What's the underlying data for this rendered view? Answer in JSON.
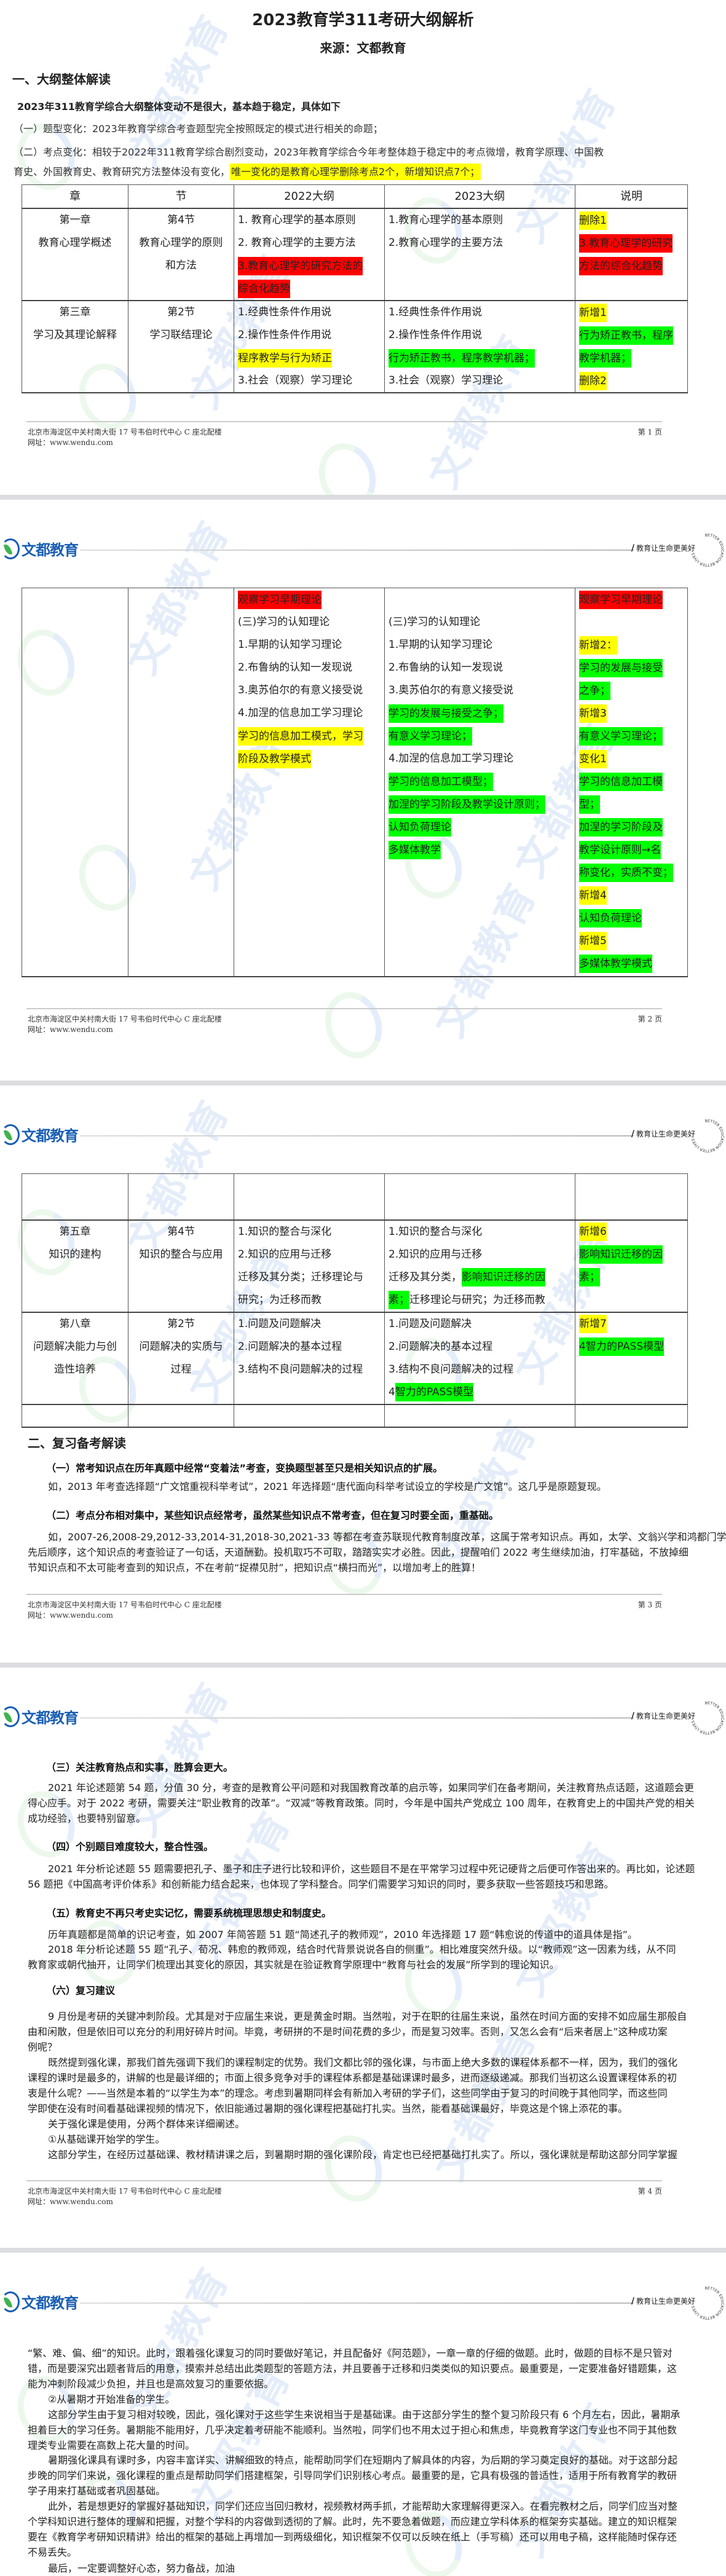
{
  "colors": {
    "red": "#ff0000",
    "yellow": "#ffff00",
    "green": "#00ff00",
    "brand_blue": "#1a5fb4",
    "brand_green": "#3fb34f"
  },
  "header": {
    "logo_text": "文都教育",
    "slogan": "教育让生命更美好",
    "seal_text": "BETTER EDUCATION BETTER LIVES",
    "watermark": "文都教育"
  },
  "footer": {
    "address": "北京市海淀区中关村南大街 17 号韦伯时代中心 C 座北配楼",
    "website": "网址：www.wendu.com",
    "pages": [
      "第 1 页",
      "第 2 页",
      "第 3 页",
      "第 4 页"
    ]
  },
  "doc": {
    "title": "2023教育学311考研大纲解析",
    "source": "来源：文都教育",
    "section1_heading": "一、大纲整体解读",
    "summary": "2023年311教育学综合大纲整体变动不是很大，基本趋于稳定，具体如下",
    "item1": "（一）题型变化：2023年教育学综合考查题型完全按照既定的模式进行相关的命题；",
    "item2_line1": "（二）考点变化：相较于2022年311教育学综合剧烈变动，2023年教育学综合今年考整体趋于稳定中的考点微增，教育学原理、中国教",
    "item2_line2": "育史、外国教育史、教育研究方法整体没有变化，",
    "item2_highlight": "唯一变化的是教育心理学删除考点2个，新增知识点7个；"
  },
  "table1": {
    "header": [
      "章",
      "节",
      "2022大纲",
      "2023大纲",
      "说明"
    ],
    "rows": [
      [
        [
          "第一章",
          "教育心理学概述"
        ],
        [
          "第4节",
          "教育心理学的原则",
          "和方法"
        ],
        [
          "1. 教育心理学的基本原则",
          "2. 教育心理学的主要方法",
          {
            "t": "3.教育心理学的研究方法的",
            "hl": "red"
          },
          {
            "t": "综合化趋势",
            "hl": "red"
          }
        ],
        [
          "1.教育心理学的基本原则",
          "2.教育心理学的主要方法"
        ],
        [
          {
            "t": "删除1",
            "hl": "yellow"
          },
          {
            "t": "3.教育心理学的研究",
            "hl": "red"
          },
          {
            "t": "方法的综合化趋势",
            "hl": "red"
          }
        ]
      ],
      [
        [
          "第三章",
          "学习及其理论解释"
        ],
        [
          "第2节",
          "学习联结理论"
        ],
        [
          "1.经典性条件作用说",
          "2.操作性条件作用说",
          {
            "t": "程序教学与行为矫正",
            "hl": "yellow"
          },
          "3.社会（观察）学习理论"
        ],
        [
          "1.经典性条件作用说",
          "2.操作性条件作用说",
          {
            "t": "行为矫正教书，程序教学机器；",
            "hl": "green"
          },
          "3.社会（观察）学习理论"
        ],
        [
          {
            "t": "新增1",
            "hl": "yellow"
          },
          {
            "t": "行为矫正教书，程序",
            "hl": "green"
          },
          {
            "t": "教学机器；",
            "hl": "green"
          },
          {
            "t": "删除2",
            "hl": "yellow"
          }
        ]
      ]
    ]
  },
  "table2": {
    "rows": [
      [
        [],
        [],
        [
          {
            "t": "观察学习早期理论",
            "hl": "red"
          },
          "(三)学习的认知理论",
          "1.早期的认知学习理论",
          "2.布鲁纳的认知一发现说",
          "3.奥苏伯尔的有意义接受说",
          "4.加涅的信息加工学习理论",
          {
            "t": "学习的信息加工模式，学习",
            "hl": "yellow"
          },
          {
            "t": "阶段及教学模式",
            "hl": "yellow"
          }
        ],
        [
          "",
          "(三)学习的认知理论",
          "1.早期的认知学习理论",
          "2.布鲁纳的认知一发现说",
          "3.奥苏伯尔的有意义接受说",
          {
            "t": "学习的发展与接受之争；",
            "hl": "green"
          },
          {
            "t": "有意义学习理论；",
            "hl": "green"
          },
          "4.加涅的信息加工学习理论",
          {
            "t": "学习的信息加工模型；",
            "hl": "green"
          },
          {
            "t": "加涅的学习阶段及教学设计原则；",
            "hl": "green"
          },
          {
            "t": "认知负荷理论",
            "hl": "green"
          },
          {
            "t": "多媒体教学",
            "hl": "green"
          }
        ],
        [
          {
            "t": "观察学习早期理论",
            "hl": "red"
          },
          "",
          {
            "t": "新增2：",
            "hl": "yellow"
          },
          {
            "t": "学习的发展与接受",
            "hl": "green"
          },
          {
            "t": "之争；",
            "hl": "green"
          },
          {
            "t": "新增3",
            "hl": "yellow"
          },
          {
            "t": "有意义学习理论；",
            "hl": "green"
          },
          {
            "t": "变化1",
            "hl": "yellow"
          },
          {
            "t": "学习的信息加工模",
            "hl": "green"
          },
          {
            "t": "型；",
            "hl": "green"
          },
          {
            "t": "加涅的学习阶段及",
            "hl": "green"
          },
          {
            "t": "教学设计原则→名",
            "hl": "green"
          },
          {
            "t": "称变化，实质不变；",
            "hl": "green"
          },
          {
            "t": "新增4",
            "hl": "yellow"
          },
          {
            "t": "认知负荷理论",
            "hl": "green"
          },
          {
            "t": "新增5",
            "hl": "yellow"
          },
          {
            "t": "多媒体教学模式",
            "hl": "green"
          }
        ]
      ]
    ]
  },
  "table3": {
    "rows": [
      [
        [],
        [],
        [],
        [],
        []
      ],
      [
        [
          "第五章",
          "知识的建构"
        ],
        [
          "第4节",
          "知识的整合与应用"
        ],
        [
          "1.知识的整合与深化",
          "2.知识的应用与迁移",
          "迁移及其分类；迁移理论与",
          "研究；为迁移而教"
        ],
        [
          "1.知识的整合与深化",
          "2.知识的应用与迁移",
          [
            {
              "t": "迁移及其分类，"
            },
            {
              "t": "影响知识迁移的因",
              "hl": "green"
            }
          ],
          [
            {
              "t": "素；",
              "hl": "green"
            },
            {
              "t": "迁移理论与研究；为迁移而教"
            }
          ]
        ],
        [
          {
            "t": "新增6",
            "hl": "yellow"
          },
          {
            "t": "影响知识迁移的因",
            "hl": "green"
          },
          {
            "t": "素；",
            "hl": "green"
          }
        ]
      ],
      [
        [
          "第八章",
          "问题解决能力与创",
          "造性培养"
        ],
        [
          "第2节",
          "问题解决的实质与",
          "过程"
        ],
        [
          "1.问题及问题解决",
          "2.问题解决的基本过程",
          "3.结构不良问题解决的过程"
        ],
        [
          "1.问题及问题解决",
          "2.问题解决的基本过程",
          "3.结构不良问题解决的过程",
          [
            {
              "t": "4"
            },
            {
              "t": "智力的PASS模型",
              "hl": "green"
            }
          ]
        ],
        [
          {
            "t": "新增7",
            "hl": "yellow"
          },
          {
            "t": "4智力的PASS模型",
            "hl": "green"
          }
        ]
      ],
      [
        [],
        [],
        [],
        [],
        []
      ]
    ]
  },
  "page3_text": [
    {
      "type": "h2",
      "lines": [
        "二、复习备考解读"
      ]
    },
    {
      "type": "h",
      "lines": [
        "（一）常考知识点在历年真题中经常“变着法”考查，变换题型甚至只是相关知识点的扩展。"
      ]
    },
    {
      "type": "p",
      "lines": [
        "如，2013 年考查选择题“广文馆重视科举考试”，2021 年选择题“唐代面向科举考试设立的学校是广文馆”。这几乎是原题复现。"
      ]
    },
    {
      "type": "h",
      "lines": [
        "（二）考点分布相对集中，某些知识点经常考，虽然某些知识点不常考查，但在复习时要全面，重基础。"
      ]
    },
    {
      "type": "p",
      "lines": [
        "如，2007-26,2008-29,2012-33,2014-31,2018-30,2021-33 等都在考查苏联现代教育制度改革，这属于常考知识点。再如，太学、文翁兴学和鸿都门学的",
        "先后顺序，这个知识点的考查验证了一句话，天道酬勤。投机取巧不可取，踏踏实实才必胜。因此，提醒咱们 2022 考生继续加油，打牢基础，不放掉细",
        "节知识点和不太可能考查到的知识点，不在考前“捉襟见肘”，把知识点“横扫而光”，以增加考上的胜算！"
      ]
    }
  ],
  "page4_text": [
    {
      "type": "h",
      "lines": [
        "（三）关注教育热点和实事，胜算会更大。"
      ]
    },
    {
      "type": "p",
      "lines": [
        "2021 年论述题第 54 题，分值 30 分，考查的是教育公平问题和对我国教育改革的启示等，如果同学们在备考期间，关注教育热点话题，这道题会更",
        "得心应手。对于 2022 考研，需要关注“职业教育的改革”。“双减”等教育政策。同时，今年是中国共产党成立 100 周年，在教育史上的中国共产党的相关",
        "成功经验，也要特别留意。"
      ]
    },
    {
      "type": "h",
      "lines": [
        "（四）个别题目难度较大，整合性强。"
      ]
    },
    {
      "type": "p",
      "lines": [
        "2021 年分析论述题 55 题需要把孔子、墨子和庄子进行比较和评价，这些题目不是在平常学习过程中死记硬背之后便可作答出来的。再比如，论述题",
        "56 题把《中国高考评价体系》和创新能力结合起来，也体现了学科整合。同学们需要学习知识的同时，要多获取一些答题技巧和思路。"
      ]
    },
    {
      "type": "h",
      "lines": [
        "（五）教育史不再只考史实记忆，需要系统梳理思想史和制度史。"
      ]
    },
    {
      "type": "p",
      "lines": [
        "历年真题都是简单的识记考查，如 2007 年简答题 51 题“简述孔子的教师观”，2010 年选择题 17 题“韩愈说的传道中的道具体是指”。"
      ]
    },
    {
      "type": "p",
      "lines": [
        "2018 年分析论述题 55 题“孔子、荀况、韩愈的教师观，结合时代背景说说各自的侧重”。相比难度突然升级。以“教师观”这一因素为线，从不同",
        "教育家或朝代抽开，让同学们梳理出其变化的原因，其实就是在验证教育学原理中“教育与社会的发展”所学到的理论知识。"
      ]
    },
    {
      "type": "h",
      "lines": [
        "（六）复习建议"
      ]
    },
    {
      "type": "p",
      "lines": [
        "9 月份是考研的关键冲刺阶段。尤其是对于应届生来说，更是黄金时期。当然啦，对于在职的往届生来说，虽然在时间方面的安排不如应届生那般自",
        "由和闲散，但是依旧可以充分的利用好碎片时间。毕竟，考研拼的不是时间花费的多少，而是复习效率。否则，又怎么会有“后来者居上”这种成功案",
        "例呢？"
      ]
    },
    {
      "type": "p",
      "lines": [
        "既然提到强化课，那我们首先强调下我们的课程制定的优势。我们文都比邻的强化课，与市面上绝大多数的课程体系都不一样，因为，我们的强化",
        "课程的课时是最多的，讲解的也是最详细的；市面上很多竞争对手的课程体系都是基础课课时最多，进而逐级递减。那我们当初这么设置课程体系的初",
        "衷是什么呢？——当然是本着的“以学生为本”的理念。考虑到暑期同样会有新加入考研的学子们，这些同学由于复习的时间晚于其他同学，而这些同",
        "学即使在没有时间看基础课视频的情况下，依旧能通过暑期的强化课程把基础打扎实。当然，能看基础课最好，毕竟这是个锦上添花的事。"
      ]
    },
    {
      "type": "p",
      "lines": [
        "关于强化课是使用，分两个群体来详细阐述。"
      ]
    },
    {
      "type": "p",
      "lines": [
        "①从基础课开始学的学生。"
      ]
    },
    {
      "type": "p",
      "lines": [
        "这部分学生，在经历过基础课、教材精讲课之后，到暑期时期的强化课阶段，肯定也已经把基础打扎实了。所以，强化课就是帮助这部分同学掌握"
      ]
    }
  ],
  "page5_text": [
    {
      "type": "p",
      "lines": [
        "“繁、难、偏、细”的知识。此时，跟着强化课复习的同时要做好笔记，并且配备好《阿范题》，一章一章的仔细的做题。此时，做题的目标不是只管对",
        "错，而是要深究出题者背后的用意，摸索并总结出此类题型的答题方法，并且要善于迁移和归类类似的知识要点。最重要是，一定要准备好错题集，这",
        "能为冲刺阶段减少负担，并且也是高效复习的重要依据。"
      ]
    },
    {
      "type": "p",
      "lines": [
        "②从暑期才开始准备的学生。"
      ]
    },
    {
      "type": "p",
      "lines": [
        "这部分学生由于复习相对较晚，因此，强化课对于这些学生来说相当于是基础课。由于这部分学生的整个复习阶段只有 6 个月左右，因此，暑期承",
        "担着巨大的学习任务。暑期能不能用好，几乎决定着考研能不能顺利。当然啦，同学们也不用太过于担心和焦虑，毕竟教育学这门专业也不同于其他数",
        "理类专业需要在高数上花大量的时间。"
      ]
    },
    {
      "type": "p",
      "lines": [
        "暑期强化课具有课时多，内容丰富详实、讲解细致的特点，能帮助同学们在短期内了解具体的内容，为后期的学习奠定良好的基础。对于这部分起",
        "步晚的同学们来说，强化课程的重点是帮助同学们搭建框架，引导同学们识别核心考点。最重要的是，它具有极强的普适性，适用于所有教育学的教研",
        "学子用来打基础或者巩固基础。"
      ]
    },
    {
      "type": "p",
      "lines": [
        "此外，若是想更好的掌握好基础知识，同学们还应当回归教材，视频教材两手抓，才能帮助大家理解得更深入。在看完教材之后，同学们应当对整",
        "个学科知识进行整体的理解和把握，对整个学科的内容做到透彻的了解。此时，先不要急着做题，而应建立学科体系的框架夯实基础。建立的知识框架",
        "要在《教育学考研知识精讲》给出的框架的基础上再增加一到两级细化，知识框架不仅可以反映在纸上（手写稿）还可以用电子稿，这样能随时保存还",
        "不易丢失。"
      ]
    },
    {
      "type": "p",
      "lines": [
        "最后，一定要调整好心态，努力备战，加油"
      ]
    }
  ]
}
